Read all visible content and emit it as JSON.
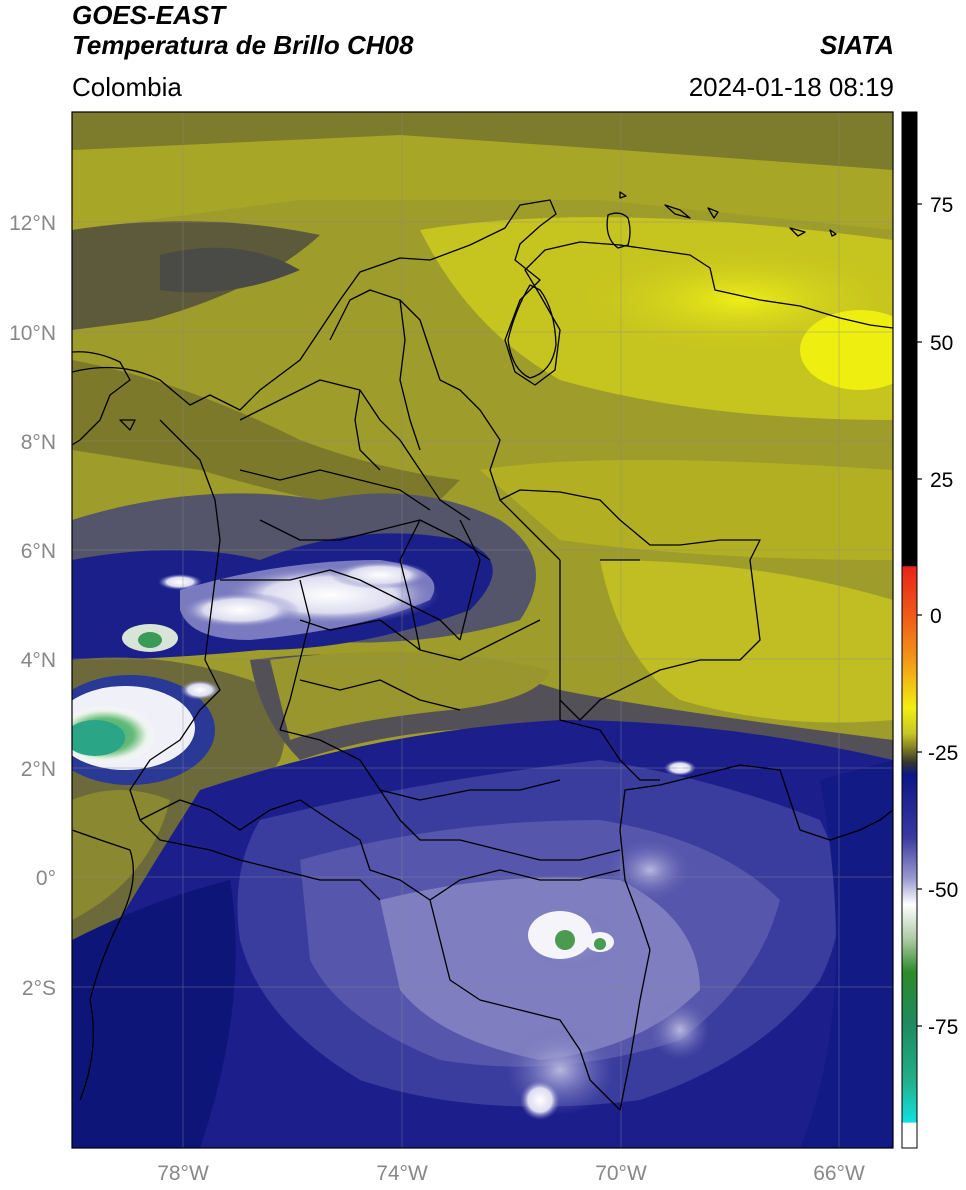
{
  "header": {
    "satellite": "GOES-EAST",
    "product": "Temperatura de Brillo CH08",
    "region": "Colombia",
    "agency": "SIATA",
    "timestamp": "2024-01-18 08:19"
  },
  "axes": {
    "lat_labels": [
      "12°N",
      "10°N",
      "8°N",
      "6°N",
      "4°N",
      "2°N",
      "0°",
      "2°S"
    ],
    "lon_labels": [
      "78°W",
      "74°W",
      "70°W",
      "66°W"
    ]
  },
  "colorbar": {
    "ticks": [
      "75",
      "50",
      "25",
      "0",
      "-25",
      "-50",
      "-75"
    ],
    "colors": {
      "black": "#000000",
      "red": "#e8231a",
      "orange": "#f29a18",
      "yellow": "#f2ee12",
      "olive": "#7c7a22",
      "navy": "#0c1686",
      "lavender": "#9a9ad0",
      "white": "#ffffff",
      "green": "#2e8a2a",
      "teal": "#22b08a",
      "cyan": "#10e0e0"
    }
  }
}
